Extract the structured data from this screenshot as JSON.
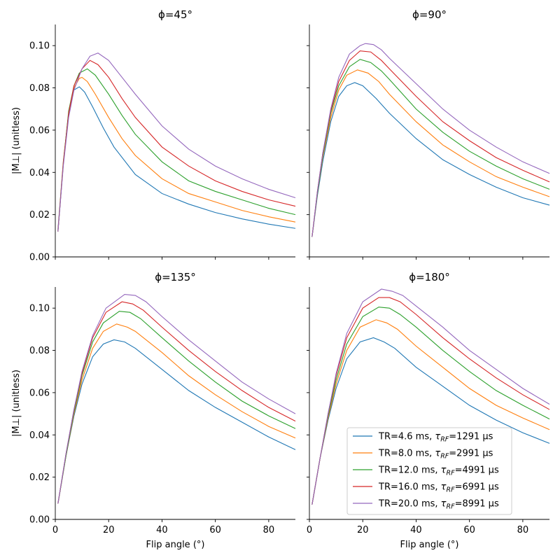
{
  "chart_data": {
    "type": "line",
    "ylim": [
      0,
      0.11
    ],
    "xlim": [
      0,
      90
    ],
    "x_ticks": [
      0,
      20,
      40,
      60,
      80
    ],
    "y_ticks": [
      0.0,
      0.02,
      0.04,
      0.06,
      0.08,
      0.1
    ],
    "y_tick_labels": [
      "0.00",
      "0.02",
      "0.04",
      "0.06",
      "0.08",
      "0.10"
    ],
    "xlabel": "Flip angle (°)",
    "ylabel": "|M⊥| (unitless)",
    "colors": [
      "#1f77b4",
      "#ff7f0e",
      "#2ca02c",
      "#d62728",
      "#9467bd"
    ],
    "series_names": [
      {
        "pre": "TR=4.6 ms, ",
        "sym": "τ",
        "sub": "RF",
        "post": "=1291 µs"
      },
      {
        "pre": "TR=8.0 ms, ",
        "sym": "τ",
        "sub": "RF",
        "post": "=2991 µs"
      },
      {
        "pre": "TR=12.0 ms, ",
        "sym": "τ",
        "sub": "RF",
        "post": "=4991 µs"
      },
      {
        "pre": "TR=16.0 ms, ",
        "sym": "τ",
        "sub": "RF",
        "post": "=6991 µs"
      },
      {
        "pre": "TR=20.0 ms, ",
        "sym": "τ",
        "sub": "RF",
        "post": "=8991 µs"
      }
    ],
    "panels": [
      {
        "title": "ϕ=45°",
        "series": [
          {
            "x": [
              1,
              3,
              5,
              7,
              9,
              11,
              14,
              18,
              22,
              30,
              40,
              50,
              60,
              70,
              80,
              90
            ],
            "values": [
              0.013,
              0.045,
              0.068,
              0.079,
              0.0805,
              0.078,
              0.071,
              0.061,
              0.052,
              0.039,
              0.03,
              0.025,
              0.021,
              0.018,
              0.0155,
              0.0135
            ]
          },
          {
            "x": [
              1,
              3,
              5,
              7,
              9,
              10,
              12,
              15,
              20,
              25,
              30,
              40,
              50,
              60,
              70,
              80,
              90
            ],
            "values": [
              0.0125,
              0.045,
              0.068,
              0.08,
              0.0845,
              0.085,
              0.083,
              0.077,
              0.066,
              0.056,
              0.048,
              0.037,
              0.03,
              0.026,
              0.022,
              0.019,
              0.0165
            ]
          },
          {
            "x": [
              1,
              3,
              5,
              7,
              9,
              12,
              15,
              20,
              25,
              30,
              40,
              50,
              60,
              70,
              80,
              90
            ],
            "values": [
              0.012,
              0.044,
              0.069,
              0.081,
              0.087,
              0.089,
              0.086,
              0.077,
              0.067,
              0.058,
              0.045,
              0.036,
              0.031,
              0.027,
              0.023,
              0.02
            ]
          },
          {
            "x": [
              1,
              3,
              5,
              7,
              10,
              13,
              16,
              20,
              25,
              30,
              40,
              50,
              60,
              70,
              80,
              90
            ],
            "values": [
              0.012,
              0.044,
              0.068,
              0.081,
              0.089,
              0.093,
              0.091,
              0.085,
              0.075,
              0.066,
              0.052,
              0.043,
              0.036,
              0.031,
              0.027,
              0.024
            ]
          },
          {
            "x": [
              1,
              3,
              5,
              7,
              10,
              13,
              16,
              20,
              25,
              30,
              40,
              50,
              60,
              70,
              80,
              90
            ],
            "values": [
              0.012,
              0.043,
              0.066,
              0.079,
              0.089,
              0.095,
              0.0965,
              0.093,
              0.085,
              0.077,
              0.062,
              0.051,
              0.043,
              0.037,
              0.032,
              0.028
            ]
          }
        ]
      },
      {
        "title": "ϕ=90°",
        "series": [
          {
            "x": [
              1,
              3,
              5,
              8,
              11,
              14,
              17,
              20,
              25,
              30,
              40,
              50,
              60,
              70,
              80,
              90
            ],
            "values": [
              0.0095,
              0.029,
              0.045,
              0.064,
              0.076,
              0.081,
              0.0825,
              0.081,
              0.075,
              0.068,
              0.056,
              0.046,
              0.039,
              0.033,
              0.028,
              0.0245
            ]
          },
          {
            "x": [
              1,
              3,
              5,
              8,
              11,
              14,
              18,
              22,
              26,
              30,
              40,
              50,
              60,
              70,
              80,
              90
            ],
            "values": [
              0.0095,
              0.03,
              0.047,
              0.066,
              0.079,
              0.086,
              0.0885,
              0.087,
              0.083,
              0.077,
              0.064,
              0.053,
              0.045,
              0.038,
              0.033,
              0.0285
            ]
          },
          {
            "x": [
              1,
              3,
              5,
              8,
              11,
              15,
              19,
              23,
              27,
              30,
              40,
              50,
              60,
              70,
              80,
              90
            ],
            "values": [
              0.0095,
              0.03,
              0.048,
              0.068,
              0.081,
              0.09,
              0.0935,
              0.092,
              0.088,
              0.084,
              0.07,
              0.059,
              0.05,
              0.043,
              0.037,
              0.032
            ]
          },
          {
            "x": [
              1,
              3,
              5,
              8,
              11,
              15,
              19,
              23,
              27,
              30,
              40,
              50,
              60,
              70,
              80,
              90
            ],
            "values": [
              0.0095,
              0.031,
              0.049,
              0.069,
              0.083,
              0.093,
              0.0975,
              0.097,
              0.093,
              0.089,
              0.076,
              0.064,
              0.055,
              0.047,
              0.041,
              0.0355
            ]
          },
          {
            "x": [
              1,
              3,
              5,
              8,
              11,
              15,
              19,
              21,
              24,
              27,
              30,
              40,
              50,
              60,
              70,
              80,
              90
            ],
            "values": [
              0.0095,
              0.031,
              0.049,
              0.07,
              0.085,
              0.096,
              0.1,
              0.101,
              0.1005,
              0.098,
              0.094,
              0.082,
              0.07,
              0.06,
              0.052,
              0.045,
              0.0395
            ]
          }
        ]
      },
      {
        "title": "ϕ=135°",
        "series": [
          {
            "x": [
              1,
              4,
              7,
              10,
              14,
              18,
              22,
              26,
              30,
              40,
              50,
              60,
              70,
              80,
              90
            ],
            "values": [
              0.0075,
              0.03,
              0.049,
              0.064,
              0.077,
              0.083,
              0.085,
              0.084,
              0.081,
              0.071,
              0.061,
              0.053,
              0.046,
              0.039,
              0.033
            ]
          },
          {
            "x": [
              1,
              4,
              7,
              10,
              14,
              18,
              23,
              27,
              30,
              40,
              50,
              60,
              70,
              80,
              90
            ],
            "values": [
              0.0075,
              0.03,
              0.05,
              0.066,
              0.081,
              0.089,
              0.0925,
              0.091,
              0.089,
              0.079,
              0.068,
              0.059,
              0.051,
              0.044,
              0.0385
            ]
          },
          {
            "x": [
              1,
              4,
              7,
              10,
              14,
              18,
              24,
              28,
              32,
              40,
              50,
              60,
              70,
              80,
              90
            ],
            "values": [
              0.0075,
              0.03,
              0.051,
              0.068,
              0.084,
              0.093,
              0.0985,
              0.098,
              0.095,
              0.086,
              0.075,
              0.065,
              0.056,
              0.049,
              0.043
            ]
          },
          {
            "x": [
              1,
              4,
              7,
              10,
              14,
              19,
              25,
              29,
              33,
              40,
              50,
              60,
              70,
              80,
              90
            ],
            "values": [
              0.0075,
              0.031,
              0.052,
              0.069,
              0.086,
              0.098,
              0.103,
              0.102,
              0.099,
              0.091,
              0.08,
              0.07,
              0.061,
              0.053,
              0.0465
            ]
          },
          {
            "x": [
              1,
              4,
              7,
              10,
              14,
              19,
              26,
              30,
              34,
              40,
              50,
              60,
              70,
              80,
              90
            ],
            "values": [
              0.0075,
              0.031,
              0.052,
              0.07,
              0.087,
              0.1,
              0.1065,
              0.106,
              0.103,
              0.096,
              0.085,
              0.075,
              0.065,
              0.057,
              0.05
            ]
          }
        ]
      },
      {
        "title": "ϕ=180°",
        "series": [
          {
            "x": [
              1,
              4,
              7,
              10,
              14,
              19,
              24,
              28,
              32,
              40,
              50,
              60,
              70,
              80,
              90
            ],
            "values": [
              0.007,
              0.029,
              0.047,
              0.062,
              0.076,
              0.084,
              0.086,
              0.084,
              0.081,
              0.072,
              0.063,
              0.054,
              0.047,
              0.041,
              0.036
            ]
          },
          {
            "x": [
              1,
              4,
              7,
              10,
              14,
              19,
              25,
              29,
              33,
              40,
              50,
              60,
              70,
              80,
              90
            ],
            "values": [
              0.007,
              0.029,
              0.048,
              0.064,
              0.08,
              0.091,
              0.0945,
              0.093,
              0.09,
              0.082,
              0.072,
              0.062,
              0.054,
              0.048,
              0.0425
            ]
          },
          {
            "x": [
              1,
              4,
              7,
              10,
              14,
              20,
              26,
              30,
              34,
              40,
              50,
              60,
              70,
              80,
              90
            ],
            "values": [
              0.007,
              0.029,
              0.049,
              0.066,
              0.083,
              0.096,
              0.1005,
              0.1,
              0.097,
              0.091,
              0.08,
              0.07,
              0.061,
              0.054,
              0.0475
            ]
          },
          {
            "x": [
              1,
              4,
              7,
              10,
              14,
              20,
              26,
              30,
              34,
              40,
              50,
              60,
              70,
              80,
              90
            ],
            "values": [
              0.007,
              0.029,
              0.05,
              0.068,
              0.086,
              0.1,
              0.105,
              0.105,
              0.103,
              0.097,
              0.086,
              0.076,
              0.067,
              0.059,
              0.052
            ]
          },
          {
            "x": [
              1,
              4,
              7,
              10,
              14,
              20,
              27,
              31,
              35,
              40,
              50,
              60,
              70,
              80,
              90
            ],
            "values": [
              0.007,
              0.029,
              0.05,
              0.069,
              0.088,
              0.103,
              0.109,
              0.108,
              0.106,
              0.101,
              0.091,
              0.08,
              0.071,
              0.062,
              0.0545
            ]
          }
        ]
      }
    ]
  }
}
